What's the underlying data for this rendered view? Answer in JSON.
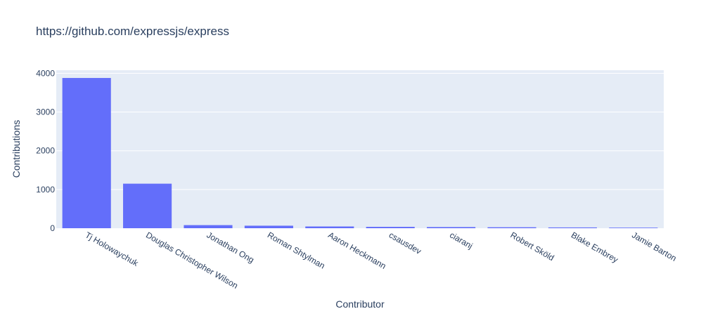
{
  "chart_data": {
    "type": "bar",
    "title": "https://github.com/expressjs/express",
    "xlabel": "Contributor",
    "ylabel": "Contributions",
    "categories": [
      "Tj Holowaychuk",
      "Douglas Christopher Wilson",
      "Jonathan Ong",
      "Roman Shtylman",
      "Aaron Heckmann",
      "csausdev",
      "ciaranj",
      "Robert Sköld",
      "Blake Embrey",
      "Jamie Barton"
    ],
    "values": [
      3880,
      1150,
      80,
      65,
      45,
      35,
      30,
      25,
      20,
      15
    ],
    "ylim": [
      0,
      4080
    ],
    "yticks": [
      0,
      1000,
      2000,
      3000,
      4000
    ],
    "ytick_labels": [
      "0",
      "1000",
      "2000",
      "3000",
      "4000"
    ],
    "grid": true,
    "legend": "none",
    "colors": {
      "bar": "#636efa",
      "plot_background": "#e5ecf6",
      "grid": "#ffffff",
      "text": "#2a3f5f"
    }
  }
}
